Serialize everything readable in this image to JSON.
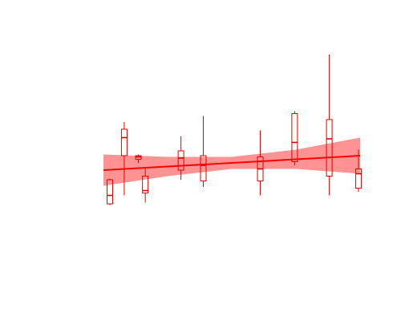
{
  "chart_data": {
    "type": "boxplot",
    "title": "",
    "xlabel": "",
    "ylabel": "",
    "axes_visible": false,
    "grid": false,
    "xlim": [
      0,
      100
    ],
    "ylim": [
      0,
      100
    ],
    "colors": {
      "box": "#e00000",
      "trend_line": "#ff0000",
      "confidence_band": "#ff8080"
    },
    "boxes": [
      {
        "x": 2.5,
        "whisker_low": 25.5,
        "q1": 26.0,
        "median": 29.5,
        "q3": 36.0,
        "whisker_high": 36.5
      },
      {
        "x": 8.1,
        "whisker_low": 29.5,
        "q1": 46.0,
        "median": 53.5,
        "q3": 57.0,
        "whisker_high": 60.0
      },
      {
        "x": 13.6,
        "whisker_low": 43.0,
        "q1": 44.5,
        "median": 45.5,
        "q3": 46.0,
        "whisker_high": 46.5
      },
      {
        "x": 16.3,
        "whisker_low": 26.5,
        "q1": 30.5,
        "median": 31.5,
        "q3": 37.5,
        "whisker_high": 41.0
      },
      {
        "x": 30.2,
        "whisker_low": 36.0,
        "q1": 40.0,
        "median": 45.0,
        "q3": 48.0,
        "whisker_high": 54.0
      },
      {
        "x": 38.9,
        "whisker_low": 33.0,
        "q1": 35.5,
        "median": 42.0,
        "q3": 46.0,
        "whisker_high": 62.5
      },
      {
        "x": 61.1,
        "whisker_low": 29.5,
        "q1": 35.5,
        "median": 40.5,
        "q3": 45.5,
        "whisker_high": 56.5
      },
      {
        "x": 74.5,
        "whisker_low": 42.0,
        "q1": 43.5,
        "median": 51.5,
        "q3": 63.5,
        "whisker_high": 64.5
      },
      {
        "x": 88.0,
        "whisker_low": 29.5,
        "q1": 37.5,
        "median": 53.0,
        "q3": 61.0,
        "whisker_high": 88.0
      },
      {
        "x": 99.4,
        "whisker_low": 31.0,
        "q1": 32.5,
        "median": 38.5,
        "q3": 40.5,
        "whisker_high": 48.5
      }
    ],
    "trend": {
      "x": [
        0,
        25,
        50,
        75,
        100
      ],
      "y": [
        40.0,
        41.5,
        43.0,
        44.5,
        46.0
      ],
      "band_lower": [
        33.5,
        37.5,
        40.5,
        40.5,
        38.5
      ],
      "band_upper": [
        46.5,
        45.5,
        45.5,
        48.5,
        53.5
      ]
    }
  }
}
